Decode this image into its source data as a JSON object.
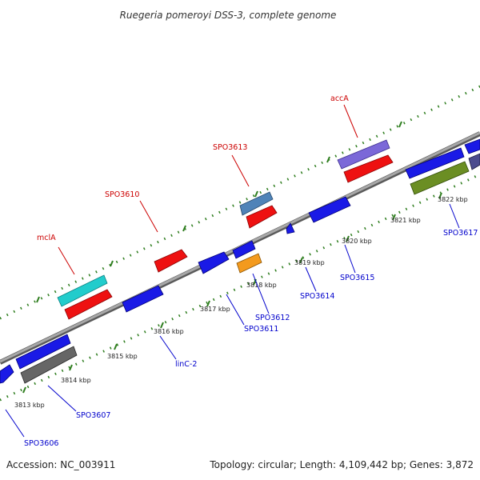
{
  "title": "Ruegeria pomeroyi DSS-3, complete genome",
  "footer": {
    "accession": "Accession: NC_003911",
    "summary": "Topology: circular; Length: 4,109,442 bp; Genes: 3,872"
  },
  "colors": {
    "backbone": "#8c8c8c",
    "ticks": "#2e7d1e",
    "forward_label": "#cc0000",
    "reverse_label": "#0000cc",
    "red": "#ee1111",
    "blue": "#1a1ae6",
    "cyan": "#22cccc",
    "purple": "#7b68d8",
    "steelblue": "#4f83b8",
    "orange": "#f39a1e",
    "olive": "#6b8e23",
    "gray": "#666666"
  },
  "ticks": [
    {
      "kbp": 3813,
      "label": "3813 kbp"
    },
    {
      "kbp": 3814,
      "label": "3814 kbp"
    },
    {
      "kbp": 3815,
      "label": "3815 kbp"
    },
    {
      "kbp": 3816,
      "label": "3816 kbp"
    },
    {
      "kbp": 3817,
      "label": "3817 kbp"
    },
    {
      "kbp": 3818,
      "label": "3818 kbp"
    },
    {
      "kbp": 3819,
      "label": "3819 kbp"
    },
    {
      "kbp": 3820,
      "label": "3820 kbp"
    },
    {
      "kbp": 3821,
      "label": "3821 kbp"
    },
    {
      "kbp": 3822,
      "label": "3822 kbp"
    }
  ],
  "forward_features": [
    {
      "label": "mclA",
      "color": "cyan"
    },
    {
      "label": "SPO3610"
    },
    {
      "label": "SPO3613",
      "color": "steelblue"
    },
    {
      "label": "accA",
      "color": "purple"
    }
  ],
  "reverse_features": [
    {
      "label": "SPO3606"
    },
    {
      "label": "SPO3607",
      "color": "gray"
    },
    {
      "label": "linC-2"
    },
    {
      "label": "SPO3611"
    },
    {
      "label": "SPO3612",
      "color": "orange"
    },
    {
      "label": "SPO3614"
    },
    {
      "label": "SPO3615"
    },
    {
      "label": "SPO3617",
      "color": "olive"
    }
  ]
}
